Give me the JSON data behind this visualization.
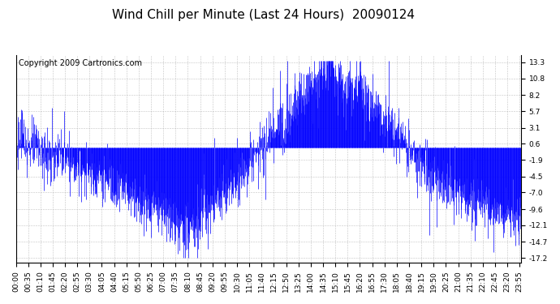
{
  "title": "Wind Chill per Minute (Last 24 Hours)  20090124",
  "copyright_text": "Copyright 2009 Cartronics.com",
  "line_color": "#0000FF",
  "bg_color": "#FFFFFF",
  "plot_bg_color": "#FFFFFF",
  "grid_color": "#AAAAAA",
  "yticks": [
    13.3,
    10.8,
    8.2,
    5.7,
    3.1,
    0.6,
    -1.9,
    -4.5,
    -7.0,
    -9.6,
    -12.1,
    -14.7,
    -17.2
  ],
  "ylim": [
    -18.0,
    14.5
  ],
  "tick_labels": [
    "00:00",
    "00:35",
    "01:10",
    "01:45",
    "02:20",
    "02:55",
    "03:30",
    "04:05",
    "04:40",
    "05:15",
    "05:50",
    "06:25",
    "07:00",
    "07:35",
    "08:10",
    "08:45",
    "09:20",
    "09:55",
    "10:30",
    "11:05",
    "11:40",
    "12:15",
    "12:50",
    "13:25",
    "14:00",
    "14:35",
    "15:10",
    "15:45",
    "16:20",
    "16:55",
    "17:30",
    "18:05",
    "18:40",
    "19:15",
    "19:50",
    "20:25",
    "21:00",
    "21:35",
    "22:10",
    "22:45",
    "23:20",
    "23:55"
  ],
  "title_fontsize": 11,
  "copyright_fontsize": 7,
  "tick_fontsize": 6.5,
  "outer_border_color": "#000000"
}
